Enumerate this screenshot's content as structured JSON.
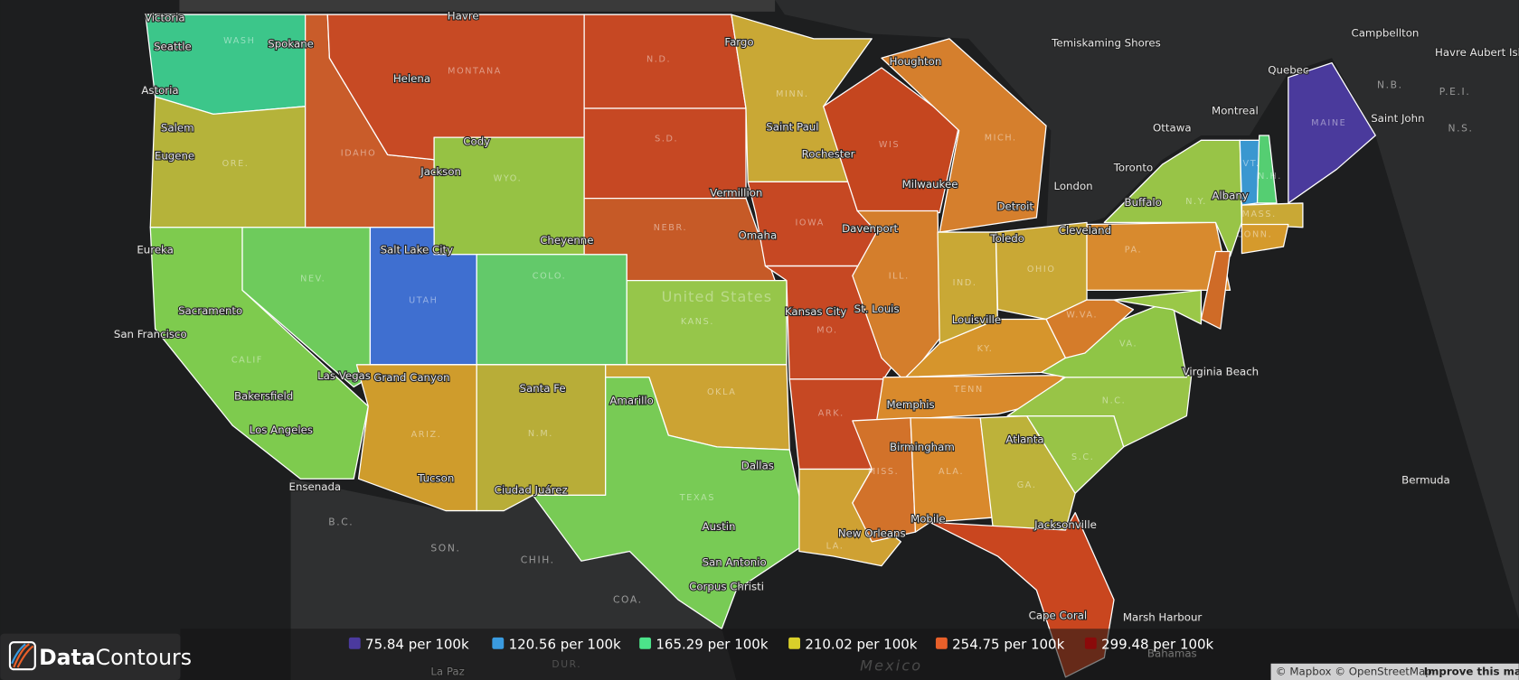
{
  "states": [
    {
      "color": "#3cc68a"
    },
    {
      "color": "#b5b33a"
    },
    {
      "color": "#7ecb4e"
    },
    {
      "color": "#6ecb5c"
    },
    {
      "color": "#c95c2a"
    },
    {
      "color": "#c74a24"
    },
    {
      "color": "#96c244"
    },
    {
      "color": "#3f6fd0"
    },
    {
      "color": "#63c96a"
    },
    {
      "color": "#cf9c2c"
    },
    {
      "color": "#b8ad38"
    },
    {
      "color": "#c64823"
    },
    {
      "color": "#c64823"
    },
    {
      "color": "#c65a27"
    },
    {
      "color": "#96c64a"
    },
    {
      "color": "#cca333"
    },
    {
      "color": "#78cb55"
    },
    {
      "color": "#c9a835"
    },
    {
      "color": "#c64823"
    },
    {
      "color": "#c64823"
    },
    {
      "color": "#c64823"
    },
    {
      "color": "#cfa133"
    },
    {
      "color": "#c5461f"
    },
    {
      "color": "#d47e2c"
    },
    {
      "color": "#d57f2d"
    },
    {
      "color": "#c9a835"
    },
    {
      "color": "#c9a835"
    },
    {
      "color": "#d6952c"
    },
    {
      "color": "#d98a2c"
    },
    {
      "color": "#d2722a"
    },
    {
      "color": "#d9892c"
    },
    {
      "color": "#bdb23a"
    },
    {
      "color": "#c9461f"
    },
    {
      "color": "#98c447"
    },
    {
      "color": "#98c447"
    },
    {
      "color": "#8fc546"
    },
    {
      "color": "#d57c2a"
    },
    {
      "color": "#d88a2e"
    },
    {
      "color": "#98c447"
    },
    {
      "color": "#cf6b27"
    },
    {
      "color": "#9ac848"
    },
    {
      "color": "#3a97d0"
    },
    {
      "color": "#55ce72"
    },
    {
      "color": "#4a3a9c"
    },
    {
      "color": "#c9a835"
    },
    {
      "color": "#d59a2c"
    }
  ],
  "regions": [
    "WASH",
    "ORE.",
    "IDAHO",
    "MONTANA",
    "N.D.",
    "S.D.",
    "MINN.",
    "WIS",
    "MICH.",
    "WYO.",
    "NEBR.",
    "IOWA",
    "NEV.",
    "UTAH",
    "COLO.",
    "KANS.",
    "MO.",
    "ILL.",
    "IND.",
    "OHIO",
    "PA.",
    "N.Y.",
    "CALIF",
    "ARIZ.",
    "N.M.",
    "OKLA",
    "ARK.",
    "TENN",
    "KY.",
    "W.VA.",
    "VA.",
    "N.C.",
    "S.C.",
    "GA.",
    "ALA.",
    "MISS.",
    "LA.",
    "TEXAS",
    "MAINE",
    "VT.",
    "N.H.",
    "MASS.",
    "CONN."
  ],
  "foreign": [
    "N.B.",
    "P.E.I.",
    "N.S.",
    "B.C.",
    "SON.",
    "CHIH.",
    "COA.",
    "DUR."
  ],
  "cities": [
    "Victoria",
    "Seattle",
    "Spokane",
    "Havre",
    "Helena",
    "Astoria",
    "Salem",
    "Eugene",
    "Cody",
    "Jackson",
    "Cheyenne",
    "Salt Lake City",
    "Eureka",
    "Sacramento",
    "San Francisco",
    "Las Vegas",
    "Bakersfield",
    "Los Angeles",
    "Ensenada",
    "Grand Canyon",
    "Tucson",
    "Santa Fe",
    "Amarillo",
    "Dallas",
    "Austin",
    "San Antonio",
    "Corpus Christi",
    "Ciudad Juárez",
    "Fargo",
    "Saint Paul",
    "Rochester",
    "Vermillion",
    "Omaha",
    "Davenport",
    "Kansas City",
    "St. Louis",
    "Houghton",
    "Milwaukee",
    "Detroit",
    "Toledo",
    "Cleveland",
    "Louisville",
    "Memphis",
    "Birmingham",
    "Atlanta",
    "Jacksonville",
    "New Orleans",
    "Mobile",
    "Virginia Beach",
    "Buffalo",
    "Albany",
    "Toronto",
    "London",
    "Ottawa",
    "Montreal",
    "Quebec",
    "Temiskaming Shores",
    "Campbellton",
    "Saint John",
    "Havre Aubert Island",
    "Bermuda",
    "Marsh Harbour",
    "Cape Coral",
    "Bahamas",
    "La Paz"
  ],
  "country_label": "United States",
  "sea_label": "Mexico",
  "legend": [
    {
      "label": "75.84 per 100k",
      "color": "#4b3a9e"
    },
    {
      "label": "120.56 per 100k",
      "color": "#3a9be0"
    },
    {
      "label": "165.29 per 100k",
      "color": "#4ce38a"
    },
    {
      "label": "210.02 per 100k",
      "color": "#d9d02a"
    },
    {
      "label": "254.75 per 100k",
      "color": "#e8602a"
    },
    {
      "label": "299.48 per 100k",
      "color": "#8b0a0a"
    }
  ],
  "brand": {
    "bold": "Data",
    "rest": "Contours"
  },
  "attribution": {
    "text": "© Mapbox © OpenStreetMap",
    "link": "Improve this map"
  }
}
